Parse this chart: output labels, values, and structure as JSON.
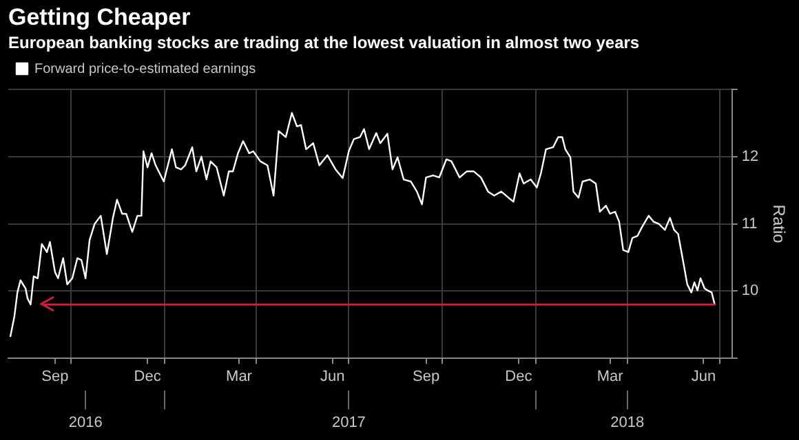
{
  "chart_data": {
    "type": "line",
    "title": "Getting Cheaper",
    "subtitle": "European banking stocks are trading at the lowest valuation in almost two years",
    "ylabel": "Ratio",
    "legend": "top left",
    "grid": true,
    "xlim": [
      "2016-07-31",
      "2018-07-13"
    ],
    "xticks": [
      {
        "value": "2016-09-15",
        "label": "Sep"
      },
      {
        "value": "2016-10-01",
        "label": null
      },
      {
        "value": "2016-12-15",
        "label": "Dec"
      },
      {
        "value": "2017-01-01",
        "label": null
      },
      {
        "value": "2017-03-15",
        "label": "Mar"
      },
      {
        "value": "2017-04-01",
        "label": null
      },
      {
        "value": "2017-06-15",
        "label": "Jun"
      },
      {
        "value": "2017-07-01",
        "label": null
      },
      {
        "value": "2017-09-15",
        "label": "Sep"
      },
      {
        "value": "2017-10-01",
        "label": null
      },
      {
        "value": "2017-12-15",
        "label": "Dec"
      },
      {
        "value": "2018-01-01",
        "label": null
      },
      {
        "value": "2018-03-15",
        "label": "Mar"
      },
      {
        "value": "2018-04-01",
        "label": null
      },
      {
        "value": "2018-06-15",
        "label": "Jun"
      },
      {
        "value": "2018-07-01",
        "label": null
      }
    ],
    "x2lim": [
      "2016-07-31",
      "2018-07-13"
    ],
    "x2ticks": [
      {
        "value": "2016-10-15",
        "label": "2016"
      },
      {
        "value": "2017-01-01",
        "label": null
      },
      {
        "value": "2017-07-01",
        "label": "2017"
      },
      {
        "value": "2018-01-01",
        "label": null
      },
      {
        "value": "2018-04-01",
        "label": "2018"
      }
    ],
    "ylim": [
      9,
      13
    ],
    "yticks": [
      {
        "value": 9,
        "label": null
      },
      10,
      11,
      12,
      {
        "value": 13,
        "label": null
      }
    ],
    "ref_lines": [
      {
        "axis": "y",
        "value": 9.8,
        "color": "#d0203a"
      }
    ],
    "x": [
      "2016-08-02",
      "2016-08-06",
      "2016-08-09",
      "2016-08-12",
      "2016-08-17",
      "2016-08-19",
      "2016-08-22",
      "2016-08-25",
      "2016-08-29",
      "2016-09-02",
      "2016-09-07",
      "2016-09-10",
      "2016-09-15",
      "2016-09-18",
      "2016-09-23",
      "2016-09-27",
      "2016-10-02",
      "2016-10-07",
      "2016-10-11",
      "2016-10-15",
      "2016-10-19",
      "2016-10-24",
      "2016-10-30",
      "2016-11-05",
      "2016-11-11",
      "2016-11-15",
      "2016-11-20",
      "2016-11-24",
      "2016-11-30",
      "2016-12-05",
      "2016-12-09",
      "2016-12-11",
      "2016-12-15",
      "2016-12-19",
      "2016-12-23",
      "2016-12-31",
      "2017-01-08",
      "2017-01-12",
      "2017-01-17",
      "2017-01-21",
      "2017-01-28",
      "2017-02-01",
      "2017-02-06",
      "2017-02-11",
      "2017-02-15",
      "2017-02-21",
      "2017-02-28",
      "2017-03-05",
      "2017-03-09",
      "2017-03-14",
      "2017-03-19",
      "2017-03-25",
      "2017-03-29",
      "2017-04-05",
      "2017-04-12",
      "2017-04-18",
      "2017-04-23",
      "2017-04-30",
      "2017-05-06",
      "2017-05-11",
      "2017-05-15",
      "2017-05-20",
      "2017-05-27",
      "2017-06-02",
      "2017-06-10",
      "2017-06-18",
      "2017-06-25",
      "2017-07-01",
      "2017-07-06",
      "2017-07-12",
      "2017-07-16",
      "2017-07-21",
      "2017-07-28",
      "2017-08-01",
      "2017-08-08",
      "2017-08-13",
      "2017-08-18",
      "2017-08-24",
      "2017-08-31",
      "2017-09-06",
      "2017-09-11",
      "2017-09-15",
      "2017-09-22",
      "2017-09-28",
      "2017-10-05",
      "2017-10-10",
      "2017-10-18",
      "2017-10-25",
      "2017-11-01",
      "2017-11-08",
      "2017-11-15",
      "2017-11-21",
      "2017-11-28",
      "2017-12-05",
      "2017-12-10",
      "2017-12-16",
      "2017-12-20",
      "2017-12-27",
      "2018-01-02",
      "2018-01-06",
      "2018-01-11",
      "2018-01-18",
      "2018-01-23",
      "2018-01-27",
      "2018-01-30",
      "2018-02-04",
      "2018-02-07",
      "2018-02-12",
      "2018-02-16",
      "2018-02-23",
      "2018-03-01",
      "2018-03-05",
      "2018-03-11",
      "2018-03-15",
      "2018-03-20",
      "2018-03-24",
      "2018-03-28",
      "2018-04-02",
      "2018-04-06",
      "2018-04-11",
      "2018-04-15",
      "2018-04-22",
      "2018-04-27",
      "2018-05-02",
      "2018-05-08",
      "2018-05-13",
      "2018-05-17",
      "2018-05-21",
      "2018-05-25",
      "2018-05-30",
      "2018-06-03",
      "2018-06-06",
      "2018-06-09",
      "2018-06-12",
      "2018-06-16",
      "2018-06-19",
      "2018-06-23",
      "2018-06-26"
    ],
    "series": [
      {
        "name": "Forward price-to-estimated earnings",
        "color": "#ffffff",
        "values": [
          9.32,
          9.62,
          9.98,
          10.16,
          10.04,
          9.89,
          9.8,
          10.22,
          10.19,
          10.7,
          10.58,
          10.73,
          10.28,
          10.19,
          10.49,
          10.1,
          10.19,
          10.49,
          10.46,
          10.19,
          10.76,
          11.0,
          11.12,
          10.55,
          11.09,
          11.36,
          11.15,
          11.15,
          10.88,
          11.12,
          11.12,
          12.08,
          11.84,
          12.05,
          11.87,
          11.63,
          12.11,
          11.84,
          11.81,
          11.87,
          12.14,
          11.78,
          12.0,
          11.66,
          11.93,
          11.84,
          11.42,
          11.78,
          11.78,
          12.05,
          12.23,
          12.05,
          12.08,
          11.93,
          11.87,
          11.42,
          12.38,
          12.29,
          12.65,
          12.45,
          12.47,
          12.11,
          12.2,
          11.87,
          12.02,
          11.81,
          11.68,
          12.08,
          12.26,
          12.29,
          12.41,
          12.11,
          12.35,
          12.2,
          12.34,
          11.81,
          11.99,
          11.66,
          11.63,
          11.48,
          11.29,
          11.69,
          11.72,
          11.69,
          11.96,
          11.93,
          11.69,
          11.78,
          11.78,
          11.69,
          11.48,
          11.42,
          11.48,
          11.39,
          11.33,
          11.75,
          11.6,
          11.66,
          11.54,
          11.75,
          12.11,
          12.14,
          12.29,
          12.29,
          12.11,
          11.99,
          11.48,
          11.39,
          11.63,
          11.66,
          11.6,
          11.18,
          11.27,
          11.15,
          11.18,
          11.03,
          10.61,
          10.58,
          10.79,
          10.82,
          10.94,
          11.12,
          11.03,
          11.0,
          10.91,
          11.09,
          10.91,
          10.85,
          10.52,
          10.1,
          9.98,
          10.13,
          10.01,
          10.19,
          10.04,
          10.01,
          9.98,
          9.8
        ]
      }
    ]
  }
}
